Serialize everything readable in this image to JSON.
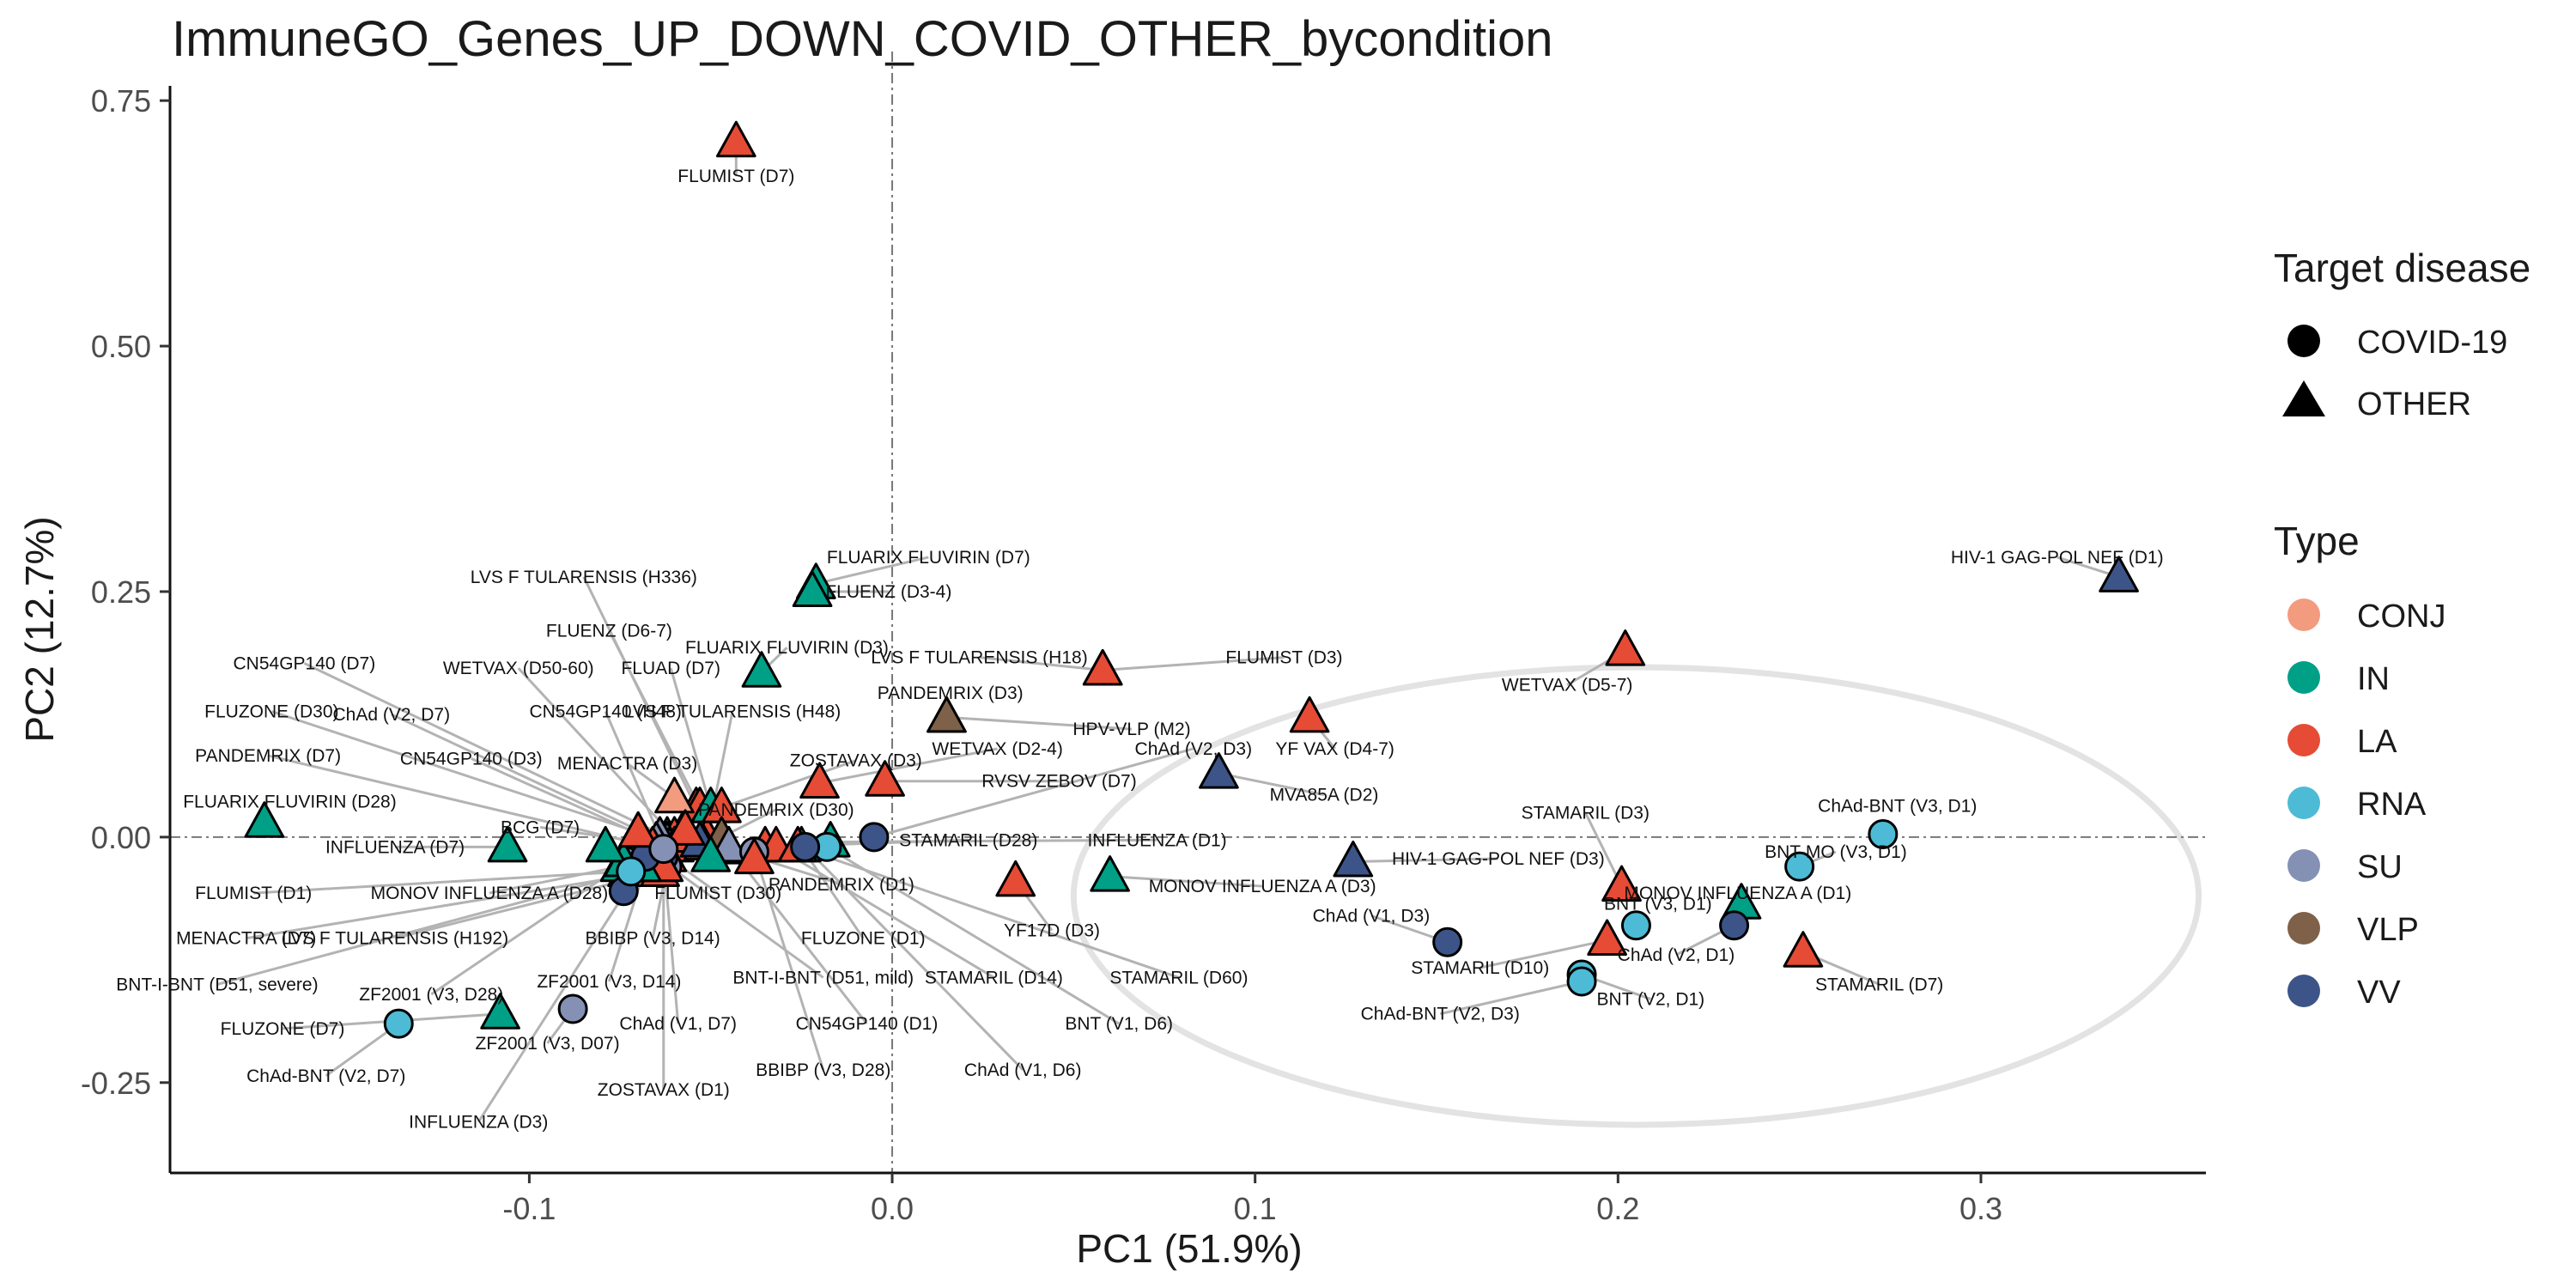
{
  "chart_data": {
    "type": "scatter",
    "title": "ImmuneGO_Genes_UP_DOWN_COVID_OTHER_bycondition",
    "xlabel": "PC1 (51.9%)",
    "ylabel": "PC2 (12.7%)",
    "xlim": [
      -0.199,
      0.362
    ],
    "ylim": [
      -0.342,
      0.765
    ],
    "xticks": [
      -0.1,
      0.0,
      0.1,
      0.2,
      0.3
    ],
    "xtick_labels": [
      "-0.1",
      "0.0",
      "0.1",
      "0.2",
      "0.3"
    ],
    "yticks": [
      -0.25,
      0.0,
      0.25,
      0.5,
      0.75
    ],
    "ytick_labels": [
      "-0.25",
      "0.00",
      "0.25",
      "0.50",
      "0.75"
    ],
    "grid": false,
    "reference_lines": {
      "x": 0,
      "y": 0
    },
    "ellipse": {
      "cx": 0.205,
      "cy": -0.06,
      "rx": 0.155,
      "ry": 0.233
    },
    "legend_placement": "right",
    "legend": {
      "shape_title": "Target disease",
      "shapes": [
        {
          "label": "COVID-19",
          "shape": "circle"
        },
        {
          "label": "OTHER",
          "shape": "triangle"
        }
      ],
      "type_title": "Type",
      "types": [
        {
          "label": "CONJ",
          "color": "#F39B7F"
        },
        {
          "label": "IN",
          "color": "#00A087"
        },
        {
          "label": "LA",
          "color": "#E64B35"
        },
        {
          "label": "RNA",
          "color": "#4DBBD5"
        },
        {
          "label": "SU",
          "color": "#8491B4"
        },
        {
          "label": "VLP",
          "color": "#7E6148"
        },
        {
          "label": "VV",
          "color": "#3C5488"
        }
      ]
    },
    "points": [
      {
        "label": "FLUMIST (D7)",
        "x": -0.043,
        "y": 0.708,
        "disease": "OTHER",
        "type": "LA",
        "lx": -0.043,
        "ly": 0.673
      },
      {
        "label": "HIV-1 GAG-POL NEF (D1)",
        "x": 0.338,
        "y": 0.265,
        "disease": "OTHER",
        "type": "VV",
        "lx": 0.321,
        "ly": 0.285
      },
      {
        "label": "WETVAX (D5-7)",
        "x": 0.202,
        "y": 0.19,
        "disease": "OTHER",
        "type": "LA",
        "lx": 0.186,
        "ly": 0.155
      },
      {
        "label": "FLUARIX FLUVIRIN (D7)",
        "x": -0.021,
        "y": 0.258,
        "disease": "OTHER",
        "type": "IN",
        "lx": 0.01,
        "ly": 0.285
      },
      {
        "label": "FLUENZ (D3-4)",
        "x": -0.022,
        "y": 0.25,
        "disease": "OTHER",
        "type": "IN",
        "lx": -0.001,
        "ly": 0.25
      },
      {
        "label": "LVS F TULARENSIS (H336)",
        "x": -0.054,
        "y": 0.03,
        "disease": "OTHER",
        "type": "LA",
        "lx": -0.085,
        "ly": 0.265
      },
      {
        "label": "FLUENZ (D6-7)",
        "x": -0.053,
        "y": 0.03,
        "disease": "OTHER",
        "type": "LA",
        "lx": -0.078,
        "ly": 0.21
      },
      {
        "label": "FLUARIX FLUVIRIN (D3)",
        "x": -0.036,
        "y": 0.168,
        "disease": "OTHER",
        "type": "IN",
        "lx": -0.029,
        "ly": 0.193
      },
      {
        "label": "LVS F TULARENSIS (H18)",
        "x": 0.058,
        "y": 0.17,
        "disease": "OTHER",
        "type": "LA",
        "lx": 0.024,
        "ly": 0.183
      },
      {
        "label": "FLUMIST (D3)",
        "x": 0.058,
        "y": 0.17,
        "disease": "OTHER",
        "type": "LA",
        "lx": 0.108,
        "ly": 0.183
      },
      {
        "label": "PANDEMRIX (D3)",
        "x": 0.015,
        "y": 0.122,
        "disease": "OTHER",
        "type": "VLP",
        "lx": 0.016,
        "ly": 0.147
      },
      {
        "label": "FLUAD (D7)",
        "x": -0.05,
        "y": 0.03,
        "disease": "OTHER",
        "type": "IN",
        "lx": -0.061,
        "ly": 0.172
      },
      {
        "label": "CN54GP140 (D7)",
        "x": -0.062,
        "y": 0.0,
        "disease": "OTHER",
        "type": "SU",
        "lx": -0.162,
        "ly": 0.177
      },
      {
        "label": "WETVAX (D50-60)",
        "x": -0.06,
        "y": 0.0,
        "disease": "OTHER",
        "type": "LA",
        "lx": -0.103,
        "ly": 0.172
      },
      {
        "label": "FLUZONE (D30)",
        "x": -0.062,
        "y": -0.005,
        "disease": "OTHER",
        "type": "IN",
        "lx": -0.171,
        "ly": 0.128
      },
      {
        "label": "ChAd (V2, D7)",
        "x": -0.063,
        "y": -0.005,
        "disease": "COVID-19",
        "type": "VV",
        "lx": -0.138,
        "ly": 0.125
      },
      {
        "label": "CN54GP140 (H48)",
        "x": -0.064,
        "y": 0.0,
        "disease": "OTHER",
        "type": "SU",
        "lx": -0.079,
        "ly": 0.128
      },
      {
        "label": "LVS F TULARENSIS (H48)",
        "x": -0.051,
        "y": 0.0,
        "disease": "OTHER",
        "type": "LA",
        "lx": -0.044,
        "ly": 0.128
      },
      {
        "label": "HPV-VLP (M2)",
        "x": 0.015,
        "y": 0.122,
        "disease": "OTHER",
        "type": "VLP",
        "lx": 0.066,
        "ly": 0.11
      },
      {
        "label": "YF VAX (D4-7)",
        "x": 0.115,
        "y": 0.122,
        "disease": "OTHER",
        "type": "LA",
        "lx": 0.122,
        "ly": 0.09
      },
      {
        "label": "PANDEMRIX (D7)",
        "x": -0.066,
        "y": -0.01,
        "disease": "OTHER",
        "type": "VLP",
        "lx": -0.172,
        "ly": 0.083
      },
      {
        "label": "CN54GP140 (D3)",
        "x": -0.065,
        "y": -0.005,
        "disease": "OTHER",
        "type": "SU",
        "lx": -0.116,
        "ly": 0.08
      },
      {
        "label": "MENACTRA (D3)",
        "x": -0.06,
        "y": 0.04,
        "disease": "OTHER",
        "type": "CONJ",
        "lx": -0.073,
        "ly": 0.075
      },
      {
        "label": "ZOSTAVAX (D3)",
        "x": -0.047,
        "y": 0.03,
        "disease": "OTHER",
        "type": "LA",
        "lx": -0.01,
        "ly": 0.078
      },
      {
        "label": "WETVAX (D2-4)",
        "x": -0.02,
        "y": 0.055,
        "disease": "OTHER",
        "type": "LA",
        "lx": 0.029,
        "ly": 0.09
      },
      {
        "label": "ChAd (V2, D3)",
        "x": -0.005,
        "y": 0.0,
        "disease": "COVID-19",
        "type": "VV",
        "lx": 0.083,
        "ly": 0.09
      },
      {
        "label": "RVSV ZEBOV (D7)",
        "x": -0.002,
        "y": 0.057,
        "disease": "OTHER",
        "type": "LA",
        "lx": 0.046,
        "ly": 0.057
      },
      {
        "label": "MVA85A (D2)",
        "x": 0.09,
        "y": 0.065,
        "disease": "OTHER",
        "type": "VV",
        "lx": 0.119,
        "ly": 0.043
      },
      {
        "label": "FLUARIX FLUVIRIN (D28)",
        "x": -0.173,
        "y": 0.015,
        "disease": "OTHER",
        "type": "IN",
        "lx": -0.166,
        "ly": 0.036
      },
      {
        "label": "PANDEMRIX (D30)",
        "x": -0.047,
        "y": 0.0,
        "disease": "OTHER",
        "type": "VLP",
        "lx": -0.032,
        "ly": 0.028
      },
      {
        "label": "BCG (D7)",
        "x": -0.06,
        "y": -0.01,
        "disease": "OTHER",
        "type": "LA",
        "lx": -0.097,
        "ly": 0.01
      },
      {
        "label": "STAMARIL (D28)",
        "x": -0.035,
        "y": -0.01,
        "disease": "OTHER",
        "type": "LA",
        "lx": 0.021,
        "ly": -0.003
      },
      {
        "label": "INFLUENZA (D1)",
        "x": -0.017,
        "y": -0.005,
        "disease": "OTHER",
        "type": "IN",
        "lx": 0.073,
        "ly": -0.003
      },
      {
        "label": "STAMARIL (D3)",
        "x": 0.201,
        "y": -0.05,
        "disease": "OTHER",
        "type": "LA",
        "lx": 0.191,
        "ly": 0.025
      },
      {
        "label": "ChAd-BNT (V3, D1)",
        "x": 0.273,
        "y": 0.003,
        "disease": "COVID-19",
        "type": "RNA",
        "lx": 0.277,
        "ly": 0.032
      },
      {
        "label": "HIV-1 GAG-POL NEF (D3)",
        "x": 0.127,
        "y": -0.025,
        "disease": "OTHER",
        "type": "VV",
        "lx": 0.167,
        "ly": -0.022
      },
      {
        "label": "BNT-MO (V3, D1)",
        "x": 0.25,
        "y": -0.03,
        "disease": "COVID-19",
        "type": "RNA",
        "lx": 0.26,
        "ly": -0.015
      },
      {
        "label": "INFLUENZA (D7)",
        "x": -0.106,
        "y": -0.01,
        "disease": "OTHER",
        "type": "IN",
        "lx": -0.137,
        "ly": -0.01
      },
      {
        "label": "FLUMIST (D1)",
        "x": -0.073,
        "y": -0.035,
        "disease": "OTHER",
        "type": "LA",
        "lx": -0.176,
        "ly": -0.057
      },
      {
        "label": "MONOV INFLUENZA A (D28)",
        "x": -0.075,
        "y": -0.03,
        "disease": "OTHER",
        "type": "IN",
        "lx": -0.111,
        "ly": -0.057
      },
      {
        "label": "FLUMIST (D30)",
        "x": -0.062,
        "y": -0.02,
        "disease": "OTHER",
        "type": "LA",
        "lx": -0.048,
        "ly": -0.057
      },
      {
        "label": "PANDEMRIX (D1)",
        "x": -0.045,
        "y": -0.012,
        "disease": "OTHER",
        "type": "VLP",
        "lx": -0.014,
        "ly": -0.048
      },
      {
        "label": "YF17D (D3)",
        "x": 0.034,
        "y": -0.045,
        "disease": "OTHER",
        "type": "LA",
        "lx": 0.044,
        "ly": -0.095
      },
      {
        "label": "MONOV INFLUENZA A (D3)",
        "x": 0.06,
        "y": -0.04,
        "disease": "OTHER",
        "type": "IN",
        "lx": 0.102,
        "ly": -0.05
      },
      {
        "label": "ChAd (V1, D3)",
        "x": 0.153,
        "y": -0.107,
        "disease": "COVID-19",
        "type": "VV",
        "lx": 0.132,
        "ly": -0.08
      },
      {
        "label": "MONOV INFLUENZA A (D1)",
        "x": 0.234,
        "y": -0.068,
        "disease": "OTHER",
        "type": "IN",
        "lx": 0.233,
        "ly": -0.057
      },
      {
        "label": "BNT (V3, D1)",
        "x": 0.205,
        "y": -0.09,
        "disease": "COVID-19",
        "type": "RNA",
        "lx": 0.211,
        "ly": -0.068
      },
      {
        "label": "ChAd (V2, D1)",
        "x": 0.232,
        "y": -0.09,
        "disease": "COVID-19",
        "type": "VV",
        "lx": 0.216,
        "ly": -0.12
      },
      {
        "label": "MENACTRA (D7)",
        "x": -0.066,
        "y": -0.035,
        "disease": "OTHER",
        "type": "CONJ",
        "lx": -0.178,
        "ly": -0.103
      },
      {
        "label": "LVS F TULARENSIS (H192)",
        "x": -0.064,
        "y": -0.035,
        "disease": "OTHER",
        "type": "LA",
        "lx": -0.137,
        "ly": -0.103
      },
      {
        "label": "BBIBP (V3, D14)",
        "x": -0.062,
        "y": -0.03,
        "disease": "COVID-19",
        "type": "SU",
        "lx": -0.066,
        "ly": -0.103
      },
      {
        "label": "FLUZONE (D1)",
        "x": -0.025,
        "y": -0.01,
        "disease": "OTHER",
        "type": "IN",
        "lx": -0.008,
        "ly": -0.103
      },
      {
        "label": "STAMARIL (D10)",
        "x": 0.197,
        "y": -0.105,
        "disease": "OTHER",
        "type": "LA",
        "lx": 0.162,
        "ly": -0.133
      },
      {
        "label": "STAMARIL (D7)",
        "x": 0.251,
        "y": -0.117,
        "disease": "OTHER",
        "type": "LA",
        "lx": 0.272,
        "ly": -0.15
      },
      {
        "label": "BNT-I-BNT (D51, severe)",
        "x": -0.066,
        "y": -0.03,
        "disease": "COVID-19",
        "type": "RNA",
        "lx": -0.186,
        "ly": -0.15
      },
      {
        "label": "ZF2001 (V3, D28)",
        "x": -0.073,
        "y": -0.025,
        "disease": "COVID-19",
        "type": "SU",
        "lx": -0.127,
        "ly": -0.16
      },
      {
        "label": "ZF2001 (V3, D14)",
        "x": -0.068,
        "y": -0.03,
        "disease": "COVID-19",
        "type": "SU",
        "lx": -0.078,
        "ly": -0.147
      },
      {
        "label": "BNT-I-BNT (D51, mild)",
        "x": -0.065,
        "y": -0.02,
        "disease": "COVID-19",
        "type": "RNA",
        "lx": -0.019,
        "ly": -0.143
      },
      {
        "label": "STAMARIL (D14)",
        "x": -0.032,
        "y": -0.01,
        "disease": "OTHER",
        "type": "LA",
        "lx": 0.028,
        "ly": -0.143
      },
      {
        "label": "STAMARIL (D60)",
        "x": -0.026,
        "y": -0.01,
        "disease": "OTHER",
        "type": "LA",
        "lx": 0.079,
        "ly": -0.143
      },
      {
        "label": "BNT (V2, D1)",
        "x": 0.19,
        "y": -0.14,
        "disease": "COVID-19",
        "type": "RNA",
        "lx": 0.209,
        "ly": -0.165
      },
      {
        "label": "ChAd-BNT (V2, D3)",
        "x": 0.19,
        "y": -0.147,
        "disease": "COVID-19",
        "type": "RNA",
        "lx": 0.151,
        "ly": -0.18
      },
      {
        "label": "FLUZONE (D7)",
        "x": -0.108,
        "y": -0.18,
        "disease": "OTHER",
        "type": "IN",
        "lx": -0.168,
        "ly": -0.195
      },
      {
        "label": "ZF2001 (V3, D07)",
        "x": -0.088,
        "y": -0.175,
        "disease": "COVID-19",
        "type": "SU",
        "lx": -0.095,
        "ly": -0.21
      },
      {
        "label": "ChAd (V1, D7)",
        "x": -0.063,
        "y": -0.02,
        "disease": "COVID-19",
        "type": "VV",
        "lx": -0.059,
        "ly": -0.19
      },
      {
        "label": "CN54GP140 (D1)",
        "x": -0.045,
        "y": -0.01,
        "disease": "OTHER",
        "type": "SU",
        "lx": -0.007,
        "ly": -0.19
      },
      {
        "label": "BNT (V1, D6)",
        "x": -0.018,
        "y": -0.01,
        "disease": "COVID-19",
        "type": "RNA",
        "lx": 0.0625,
        "ly": -0.19
      },
      {
        "label": "ChAd-BNT (V2, D7)",
        "x": -0.136,
        "y": -0.19,
        "disease": "COVID-19",
        "type": "RNA",
        "lx": -0.156,
        "ly": -0.243
      },
      {
        "label": "ZOSTAVAX (D1)",
        "x": -0.063,
        "y": -0.03,
        "disease": "OTHER",
        "type": "LA",
        "lx": -0.063,
        "ly": -0.257
      },
      {
        "label": "BBIBP (V3, D28)",
        "x": -0.038,
        "y": -0.015,
        "disease": "COVID-19",
        "type": "SU",
        "lx": -0.019,
        "ly": -0.237
      },
      {
        "label": "ChAd (V1, D6)",
        "x": -0.024,
        "y": -0.01,
        "disease": "COVID-19",
        "type": "VV",
        "lx": 0.036,
        "ly": -0.237
      },
      {
        "label": "INFLUENZA (D3)",
        "x": -0.069,
        "y": -0.03,
        "disease": "OTHER",
        "type": "IN",
        "lx": -0.114,
        "ly": -0.29
      },
      {
        "label": "",
        "x": -0.058,
        "y": 0.0,
        "disease": "OTHER",
        "type": "LA"
      },
      {
        "label": "",
        "x": -0.066,
        "y": -0.01,
        "disease": "OTHER",
        "type": "LA"
      },
      {
        "label": "",
        "x": -0.052,
        "y": -0.008,
        "disease": "OTHER",
        "type": "LA"
      },
      {
        "label": "",
        "x": -0.068,
        "y": -0.02,
        "disease": "COVID-19",
        "type": "VV"
      },
      {
        "label": "",
        "x": -0.053,
        "y": -0.005,
        "disease": "OTHER",
        "type": "VV"
      },
      {
        "label": "",
        "x": -0.074,
        "y": -0.055,
        "disease": "COVID-19",
        "type": "VV"
      },
      {
        "label": "",
        "x": -0.074,
        "y": -0.025,
        "disease": "OTHER",
        "type": "IN"
      },
      {
        "label": "",
        "x": -0.05,
        "y": -0.02,
        "disease": "OTHER",
        "type": "IN"
      },
      {
        "label": "",
        "x": -0.079,
        "y": -0.01,
        "disease": "OTHER",
        "type": "IN"
      },
      {
        "label": "",
        "x": -0.072,
        "y": -0.035,
        "disease": "COVID-19",
        "type": "RNA"
      },
      {
        "label": "",
        "x": -0.057,
        "y": 0.007,
        "disease": "OTHER",
        "type": "LA"
      },
      {
        "label": "",
        "x": -0.038,
        "y": -0.022,
        "disease": "OTHER",
        "type": "LA"
      },
      {
        "label": "",
        "x": -0.07,
        "y": 0.005,
        "disease": "OTHER",
        "type": "LA"
      },
      {
        "label": "",
        "x": -0.063,
        "y": -0.012,
        "disease": "COVID-19",
        "type": "SU"
      }
    ]
  }
}
